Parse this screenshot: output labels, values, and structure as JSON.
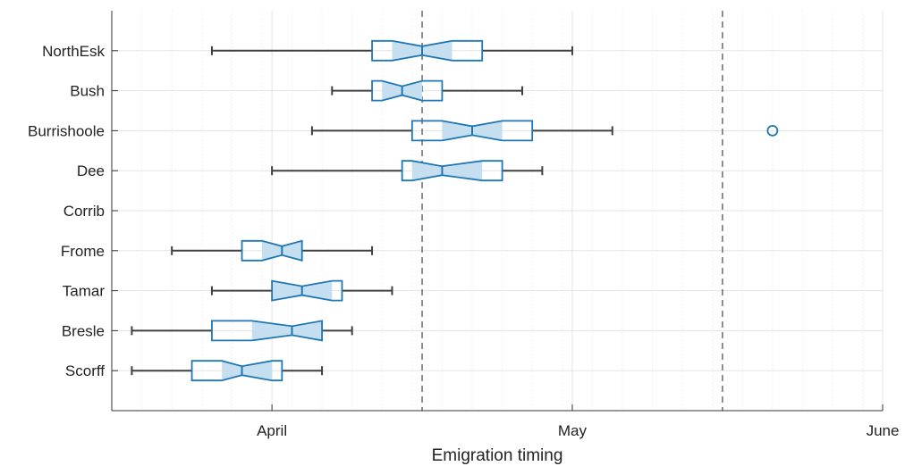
{
  "chart_data": {
    "type": "boxplot",
    "orientation": "horizontal",
    "xlabel": "Emigration timing",
    "ylabel": "",
    "title": "",
    "x_unit": "day of month",
    "xlim": [
      "2019-03-16",
      "2019-06-01"
    ],
    "x_ticks": [
      {
        "date": "2019-04-01",
        "label": "April"
      },
      {
        "date": "2019-05-01",
        "label": "May"
      },
      {
        "date": "2019-06-01",
        "label": "June"
      }
    ],
    "reference_lines": [
      {
        "date": "2019-04-16",
        "style": "dashed"
      },
      {
        "date": "2019-05-16",
        "style": "dashed"
      }
    ],
    "grid": true,
    "minor_grid": true,
    "colors": {
      "box": "#1f77b4",
      "notch_fill": "#c6dff0",
      "whisker": "#404040",
      "grid": "#e3e3e3",
      "ref_line": "#555555"
    },
    "categories": [
      "NorthEsk",
      "Bush",
      "Burrishoole",
      "Dee",
      "Corrib",
      "Frome",
      "Tamar",
      "Bresle",
      "Scorff"
    ],
    "series": [
      {
        "category": "NorthEsk",
        "whisker_low": "2019-03-26",
        "q1": "2019-04-11",
        "notch_low": "2019-04-13",
        "median": "2019-04-16",
        "notch_high": "2019-04-19",
        "q3": "2019-04-22",
        "whisker_high": "2019-05-01",
        "outliers": []
      },
      {
        "category": "Bush",
        "whisker_low": "2019-04-07",
        "q1": "2019-04-11",
        "notch_low": "2019-04-12",
        "median": "2019-04-14",
        "notch_high": "2019-04-16",
        "q3": "2019-04-18",
        "whisker_high": "2019-04-26",
        "outliers": []
      },
      {
        "category": "Burrishoole",
        "whisker_low": "2019-04-05",
        "q1": "2019-04-15",
        "notch_low": "2019-04-18",
        "median": "2019-04-21",
        "notch_high": "2019-04-24",
        "q3": "2019-04-27",
        "whisker_high": "2019-05-05",
        "outliers": [
          "2019-05-21"
        ]
      },
      {
        "category": "Dee",
        "whisker_low": "2019-04-01",
        "q1": "2019-04-14",
        "notch_low": "2019-04-15",
        "median": "2019-04-18",
        "notch_high": "2019-04-22",
        "q3": "2019-04-24",
        "whisker_high": "2019-04-28",
        "outliers": []
      },
      {
        "category": "Corrib"
      },
      {
        "category": "Frome",
        "whisker_low": "2019-03-22",
        "q1": "2019-03-29",
        "notch_low": "2019-03-31",
        "median": "2019-04-02",
        "notch_high": "2019-04-04",
        "q3": "2019-04-04",
        "whisker_high": "2019-04-11",
        "outliers": []
      },
      {
        "category": "Tamar",
        "whisker_low": "2019-03-26",
        "q1": "2019-04-01",
        "notch_low": "2019-04-01",
        "median": "2019-04-04",
        "notch_high": "2019-04-07",
        "q3": "2019-04-08",
        "whisker_high": "2019-04-13",
        "outliers": []
      },
      {
        "category": "Bresle",
        "whisker_low": "2019-03-18",
        "q1": "2019-03-26",
        "notch_low": "2019-03-30",
        "median": "2019-04-03",
        "notch_high": "2019-04-06",
        "q3": "2019-04-06",
        "whisker_high": "2019-04-09",
        "outliers": []
      },
      {
        "category": "Scorff",
        "whisker_low": "2019-03-18",
        "q1": "2019-03-24",
        "notch_low": "2019-03-27",
        "median": "2019-03-29",
        "notch_high": "2019-04-01",
        "q3": "2019-04-02",
        "whisker_high": "2019-04-06",
        "outliers": []
      }
    ]
  }
}
